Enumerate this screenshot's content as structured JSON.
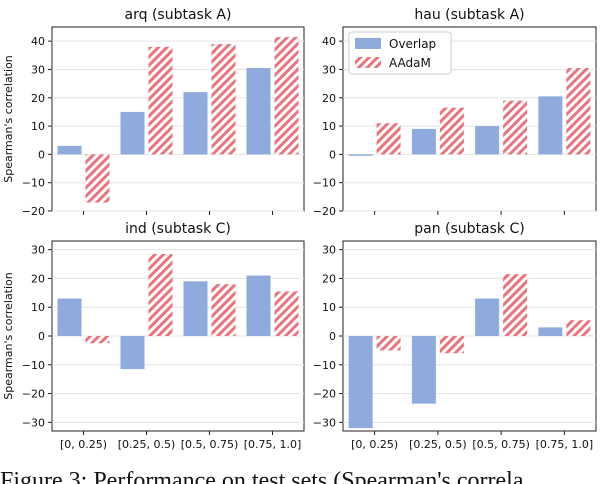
{
  "caption": "Figure 3: Performance on test sets (Spearman's correla",
  "legend": {
    "overlap_label": "Overlap",
    "aadam_label": "AAdaM",
    "colors": {
      "overlap": "#8faadc",
      "aadam": "#e8747c"
    }
  },
  "chart_data": [
    {
      "type": "bar",
      "title": "arq (subtask A)",
      "ylabel": "Spearman's correlation",
      "ylim": [
        -20,
        45
      ],
      "yticks": [
        -20,
        -10,
        0,
        10,
        20,
        30,
        40
      ],
      "categories": [
        "[0, 0.25)",
        "[0.25, 0.5)",
        "[0.5, 0.75)",
        "[0.75, 1.0]"
      ],
      "series": [
        {
          "name": "Overlap",
          "values": [
            3,
            15,
            22,
            30.5
          ]
        },
        {
          "name": "AAdaM",
          "values": [
            -17,
            38,
            39,
            41.5
          ]
        }
      ]
    },
    {
      "type": "bar",
      "title": "hau (subtask A)",
      "ylabel": "",
      "ylim": [
        -20,
        45
      ],
      "yticks": [
        -20,
        -10,
        0,
        10,
        20,
        30,
        40
      ],
      "categories": [
        "[0, 0.25)",
        "[0.25, 0.5)",
        "[0.5, 0.75)",
        "[0.75, 1.0]"
      ],
      "legend": "top-left",
      "series": [
        {
          "name": "Overlap",
          "values": [
            -0.5,
            9,
            10,
            20.5
          ]
        },
        {
          "name": "AAdaM",
          "values": [
            11,
            16.5,
            19,
            30.5
          ]
        }
      ]
    },
    {
      "type": "bar",
      "title": "ind (subtask C)",
      "ylabel": "Spearman's correlation",
      "ylim": [
        -33,
        33
      ],
      "yticks": [
        -30,
        -20,
        -10,
        0,
        10,
        20,
        30
      ],
      "categories": [
        "[0, 0.25)",
        "[0.25, 0.5)",
        "[0.5, 0.75)",
        "[0.75, 1.0]"
      ],
      "series": [
        {
          "name": "Overlap",
          "values": [
            13,
            -11.5,
            19,
            21
          ]
        },
        {
          "name": "AAdaM",
          "values": [
            -2.5,
            28.5,
            18,
            15.5
          ]
        }
      ]
    },
    {
      "type": "bar",
      "title": "pan (subtask C)",
      "ylabel": "",
      "ylim": [
        -33,
        33
      ],
      "yticks": [
        -30,
        -20,
        -10,
        0,
        10,
        20,
        30
      ],
      "categories": [
        "[0, 0.25)",
        "[0.25, 0.5)",
        "[0.5, 0.75)",
        "[0.75, 1.0]"
      ],
      "series": [
        {
          "name": "Overlap",
          "values": [
            -32,
            -23.5,
            13,
            3
          ]
        },
        {
          "name": "AAdaM",
          "values": [
            -5,
            -6,
            21.5,
            5.5
          ]
        }
      ]
    }
  ]
}
